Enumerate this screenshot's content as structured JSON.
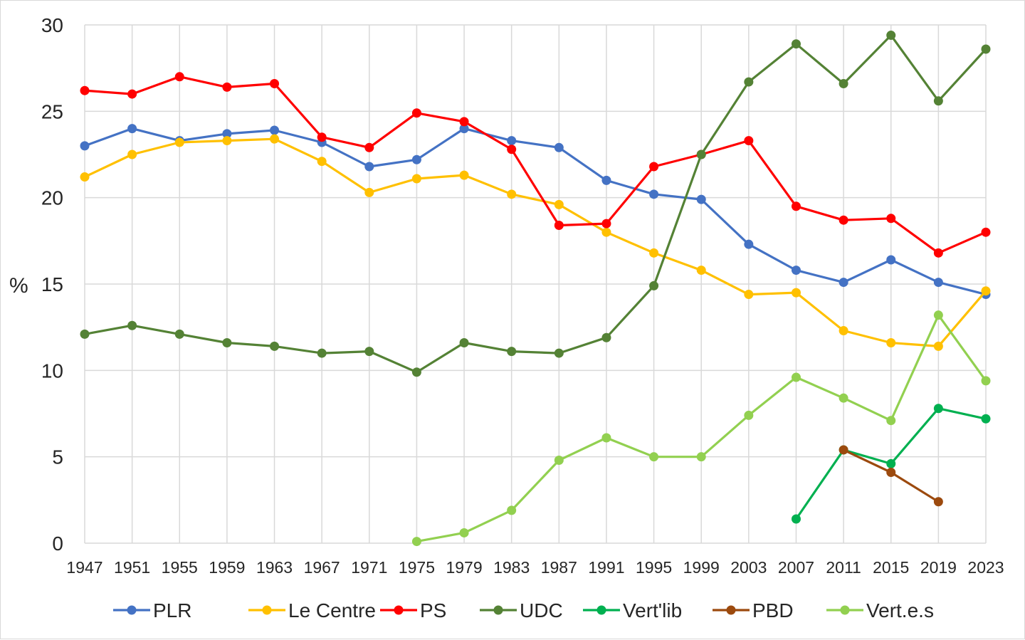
{
  "chart_data": {
    "type": "line",
    "ylabel": "%",
    "ylim": [
      0,
      30
    ],
    "yticks": [
      0,
      5,
      10,
      15,
      20,
      25,
      30
    ],
    "x": [
      "1947",
      "1951",
      "1955",
      "1959",
      "1963",
      "1967",
      "1971",
      "1975",
      "1979",
      "1983",
      "1987",
      "1991",
      "1995",
      "1999",
      "2003",
      "2007",
      "2011",
      "2015",
      "2019",
      "2023"
    ],
    "grid": true,
    "legend_position": "bottom",
    "series": [
      {
        "name": "PLR",
        "color": "#4472C4",
        "values": [
          23.0,
          24.0,
          23.3,
          23.7,
          23.9,
          23.2,
          21.8,
          22.2,
          24.0,
          23.3,
          22.9,
          21.0,
          20.2,
          19.9,
          17.3,
          15.8,
          15.1,
          16.4,
          15.1,
          14.4
        ]
      },
      {
        "name": "Le Centre",
        "color": "#FFC000",
        "values": [
          21.2,
          22.5,
          23.2,
          23.3,
          23.4,
          22.1,
          20.3,
          21.1,
          21.3,
          20.2,
          19.6,
          18.0,
          16.8,
          15.8,
          14.4,
          14.5,
          12.3,
          11.6,
          11.4,
          14.6
        ]
      },
      {
        "name": "PS",
        "color": "#FF0000",
        "values": [
          26.2,
          26.0,
          27.0,
          26.4,
          26.6,
          23.5,
          22.9,
          24.9,
          24.4,
          22.8,
          18.4,
          18.5,
          21.8,
          22.5,
          23.3,
          19.5,
          18.7,
          18.8,
          16.8,
          18.0
        ]
      },
      {
        "name": "UDC",
        "color": "#548235",
        "values": [
          12.1,
          12.6,
          12.1,
          11.6,
          11.4,
          11.0,
          11.1,
          9.9,
          11.6,
          11.1,
          11.0,
          11.9,
          14.9,
          22.5,
          26.7,
          28.9,
          26.6,
          29.4,
          25.6,
          28.6
        ]
      },
      {
        "name": "Vert'lib",
        "color": "#00B050",
        "values": [
          null,
          null,
          null,
          null,
          null,
          null,
          null,
          null,
          null,
          null,
          null,
          null,
          null,
          null,
          null,
          1.4,
          5.4,
          4.6,
          7.8,
          7.2
        ]
      },
      {
        "name": "PBD",
        "color": "#9C4A0E",
        "values": [
          null,
          null,
          null,
          null,
          null,
          null,
          null,
          null,
          null,
          null,
          null,
          null,
          null,
          null,
          null,
          null,
          5.4,
          4.1,
          2.4,
          null
        ]
      },
      {
        "name": "Vert.e.s",
        "color": "#92D050",
        "values": [
          null,
          null,
          null,
          null,
          null,
          null,
          null,
          0.1,
          0.6,
          1.9,
          4.8,
          6.1,
          5.0,
          5.0,
          7.4,
          9.6,
          8.4,
          7.1,
          13.2,
          9.4
        ]
      }
    ]
  }
}
